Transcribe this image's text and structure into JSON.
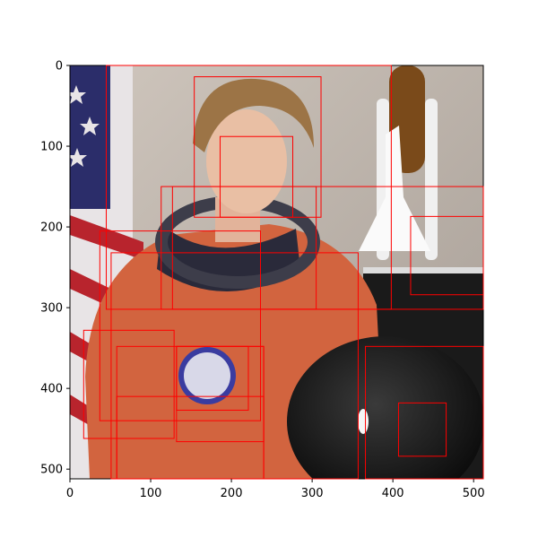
{
  "chart_data": {
    "type": "image-with-bounding-boxes",
    "image_content": "photo of an astronaut in an orange flight suit beside a flag and shuttle model",
    "xlim": [
      0,
      512
    ],
    "ylim": [
      512,
      0
    ],
    "x_ticks": [
      0,
      100,
      200,
      300,
      400,
      500
    ],
    "y_ticks": [
      0,
      100,
      200,
      300,
      400,
      500
    ],
    "x_tick_labels": [
      "0",
      "100",
      "200",
      "300",
      "400",
      "500"
    ],
    "y_tick_labels": [
      "0",
      "100",
      "200",
      "300",
      "400",
      "500"
    ],
    "box_color": "#ff0000",
    "boxes": [
      {
        "x0": 45,
        "y0": 0,
        "x1": 398,
        "y1": 302
      },
      {
        "x0": 154,
        "y0": 14,
        "x1": 311,
        "y1": 188
      },
      {
        "x0": 186,
        "y0": 88,
        "x1": 276,
        "y1": 188
      },
      {
        "x0": 113,
        "y0": 150,
        "x1": 512,
        "y1": 302
      },
      {
        "x0": 127,
        "y0": 150,
        "x1": 305,
        "y1": 302
      },
      {
        "x0": 422,
        "y0": 187,
        "x1": 512,
        "y1": 284
      },
      {
        "x0": 37,
        "y0": 205,
        "x1": 236,
        "y1": 440
      },
      {
        "x0": 51,
        "y0": 232,
        "x1": 357,
        "y1": 512
      },
      {
        "x0": 17,
        "y0": 328,
        "x1": 129,
        "y1": 462
      },
      {
        "x0": 58,
        "y0": 348,
        "x1": 240,
        "y1": 512
      },
      {
        "x0": 132,
        "y0": 348,
        "x1": 221,
        "y1": 427
      },
      {
        "x0": 132,
        "y0": 348,
        "x1": 240,
        "y1": 466
      },
      {
        "x0": 366,
        "y0": 348,
        "x1": 512,
        "y1": 512
      },
      {
        "x0": 407,
        "y0": 418,
        "x1": 466,
        "y1": 484
      },
      {
        "x0": 58,
        "y0": 410,
        "x1": 240,
        "y1": 512
      }
    ]
  }
}
